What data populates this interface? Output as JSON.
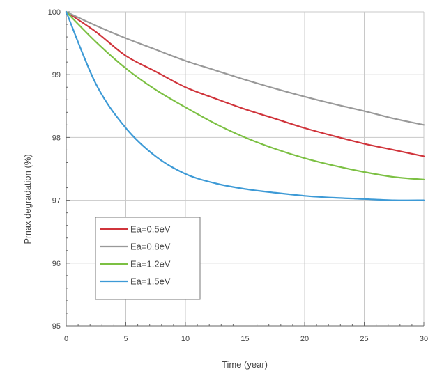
{
  "chart_data": {
    "type": "line",
    "title": "",
    "xlabel": "Time (year)",
    "ylabel": "Pmax degradation (%)",
    "xlim": [
      0,
      30
    ],
    "ylim": [
      95,
      100
    ],
    "xticks": [
      0,
      5,
      10,
      15,
      20,
      25,
      30
    ],
    "xtick_labels": [
      "0",
      "5",
      "10",
      "15",
      "20",
      "25",
      "30"
    ],
    "yticks": [
      95,
      96,
      97,
      98,
      99,
      100
    ],
    "ytick_labels": [
      "95",
      "96",
      "97",
      "98",
      "99",
      "100"
    ],
    "grid": true,
    "legend_position": "bottom-left",
    "x": [
      0,
      2.5,
      5,
      7.5,
      10,
      12.5,
      15,
      17.5,
      20,
      22.5,
      25,
      27.5,
      30
    ],
    "series": [
      {
        "name": "Ea=0.5eV",
        "color": "#d0343b",
        "values": [
          100,
          99.68,
          99.3,
          99.05,
          98.8,
          98.62,
          98.45,
          98.3,
          98.15,
          98.02,
          97.9,
          97.8,
          97.7
        ]
      },
      {
        "name": "Ea=0.8eV",
        "color": "#999999",
        "values": [
          100,
          99.78,
          99.58,
          99.4,
          99.22,
          99.07,
          98.92,
          98.78,
          98.65,
          98.53,
          98.42,
          98.3,
          98.2
        ]
      },
      {
        "name": "Ea=1.2eV",
        "color": "#7cc043",
        "values": [
          100,
          99.52,
          99.1,
          98.76,
          98.48,
          98.22,
          98.0,
          97.82,
          97.67,
          97.55,
          97.45,
          97.37,
          97.33
        ]
      },
      {
        "name": "Ea=1.5eV",
        "color": "#3d9ad6",
        "values": [
          100,
          98.85,
          98.15,
          97.7,
          97.42,
          97.27,
          97.18,
          97.12,
          97.07,
          97.04,
          97.02,
          97.0,
          97.0
        ]
      }
    ]
  }
}
